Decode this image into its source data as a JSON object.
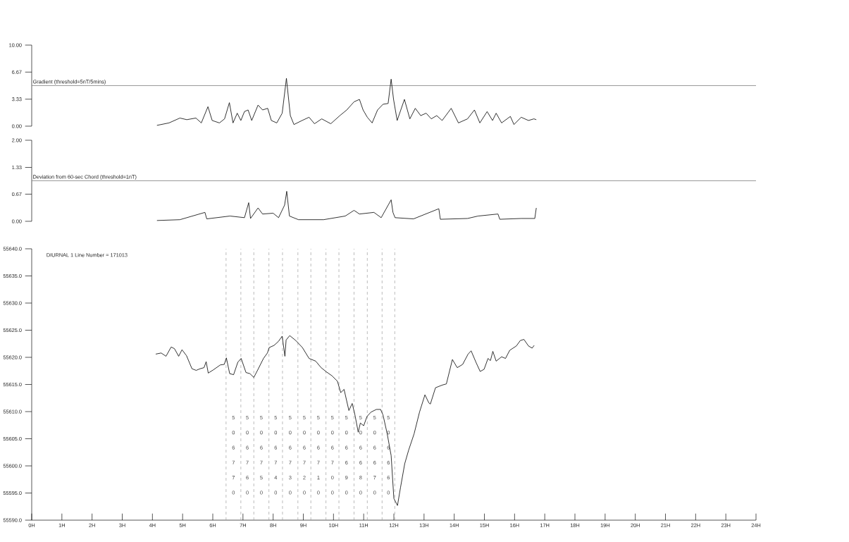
{
  "chart_data": [
    {
      "type": "line",
      "color": "#000000",
      "xlim": [
        0,
        24
      ],
      "ylim": [
        0,
        10
      ],
      "tick_labels": "y",
      "yticks": [
        {
          "value": 0,
          "label": "0.00"
        },
        {
          "value": 3.33,
          "label": "3.33"
        },
        {
          "value": 6.67,
          "label": "6.67"
        },
        {
          "value": 10,
          "label": "10.00"
        }
      ],
      "ref_lines": [
        {
          "axis": "y",
          "value": 5,
          "label": "Gradient (threshold=5nT/5mins)",
          "color": "#808080"
        }
      ],
      "x": [
        4.15,
        4.55,
        4.91,
        5.14,
        5.44,
        5.62,
        5.84,
        5.98,
        6.22,
        6.39,
        6.55,
        6.67,
        6.81,
        6.93,
        7.05,
        7.17,
        7.29,
        7.5,
        7.65,
        7.82,
        7.94,
        8.12,
        8.3,
        8.44,
        8.57,
        8.69,
        8.96,
        9.19,
        9.37,
        9.61,
        9.91,
        10.21,
        10.44,
        10.68,
        10.86,
        10.98,
        11.12,
        11.28,
        11.46,
        11.64,
        11.81,
        11.91,
        11.99,
        12.11,
        12.35,
        12.53,
        12.71,
        12.89,
        13.07,
        13.24,
        13.42,
        13.6,
        13.9,
        14.14,
        14.44,
        14.67,
        14.85,
        15.09,
        15.27,
        15.39,
        15.57,
        15.86,
        15.98,
        16.22,
        16.46,
        16.64,
        16.72
      ],
      "values": [
        0.1,
        0.4,
        1.0,
        0.8,
        1.0,
        0.4,
        2.4,
        0.7,
        0.4,
        0.9,
        2.9,
        0.4,
        1.6,
        0.7,
        1.8,
        2.0,
        0.7,
        2.6,
        2.0,
        2.2,
        0.7,
        0.4,
        1.6,
        5.9,
        1.3,
        0.2,
        0.7,
        1.1,
        0.3,
        0.9,
        0.3,
        1.3,
        2.0,
        3.0,
        3.3,
        2.0,
        1.1,
        0.4,
        2.0,
        2.7,
        2.8,
        5.8,
        3.3,
        0.7,
        3.3,
        0.9,
        2.2,
        1.3,
        1.6,
        0.9,
        1.3,
        0.7,
        2.2,
        0.4,
        0.9,
        2.0,
        0.4,
        1.8,
        0.7,
        1.6,
        0.4,
        1.2,
        0.2,
        1.1,
        0.7,
        0.9,
        0.8
      ]
    },
    {
      "type": "line",
      "color": "#000000",
      "xlim": [
        0,
        24
      ],
      "ylim": [
        0,
        2
      ],
      "tick_labels": "y",
      "yticks": [
        {
          "value": 0,
          "label": "0.00"
        },
        {
          "value": 0.67,
          "label": "0.67"
        },
        {
          "value": 1.33,
          "label": "1.33"
        },
        {
          "value": 2,
          "label": "2.00"
        }
      ],
      "ref_lines": [
        {
          "axis": "y",
          "value": 1,
          "label": "Deviation from 60-sec Chord (threshold=1nT)",
          "color": "#808080"
        }
      ],
      "x": [
        4.15,
        4.91,
        5.74,
        5.8,
        6.57,
        7.05,
        7.19,
        7.25,
        7.5,
        7.65,
        8.0,
        8.18,
        8.38,
        8.45,
        8.54,
        8.84,
        9.67,
        10.39,
        10.68,
        10.86,
        11.34,
        11.58,
        11.91,
        11.97,
        12.04,
        12.65,
        13.49,
        13.54,
        14.44,
        14.79,
        15.45,
        15.51,
        16.22,
        16.67,
        16.72
      ],
      "values": [
        0.02,
        0.04,
        0.22,
        0.06,
        0.13,
        0.09,
        0.46,
        0.07,
        0.33,
        0.18,
        0.2,
        0.09,
        0.4,
        0.74,
        0.13,
        0.04,
        0.04,
        0.13,
        0.27,
        0.18,
        0.22,
        0.09,
        0.53,
        0.22,
        0.09,
        0.06,
        0.31,
        0.05,
        0.07,
        0.13,
        0.18,
        0.05,
        0.07,
        0.07,
        0.33
      ]
    },
    {
      "type": "line",
      "color": "#000000",
      "title": "DIURNAL 1   Line Number = 171013",
      "xlim": [
        0,
        24
      ],
      "ylim": [
        55590,
        55640
      ],
      "yticks": [
        {
          "value": 55590,
          "label": "55590.0"
        },
        {
          "value": 55595,
          "label": "55595.0"
        },
        {
          "value": 55600,
          "label": "55600.0"
        },
        {
          "value": 55605,
          "label": "55605.0"
        },
        {
          "value": 55610,
          "label": "55610.0"
        },
        {
          "value": 55615,
          "label": "55615.0"
        },
        {
          "value": 55620,
          "label": "55620.0"
        },
        {
          "value": 55625,
          "label": "55625.0"
        },
        {
          "value": 55630,
          "label": "55630.0"
        },
        {
          "value": 55635,
          "label": "55635.0"
        },
        {
          "value": 55640,
          "label": "55640.0"
        }
      ],
      "xticks": [
        {
          "value": 0,
          "label": "0H"
        },
        {
          "value": 1,
          "label": "1H"
        },
        {
          "value": 2,
          "label": "2H"
        },
        {
          "value": 3,
          "label": "3H"
        },
        {
          "value": 4,
          "label": "4H"
        },
        {
          "value": 5,
          "label": "5H"
        },
        {
          "value": 6,
          "label": "6H"
        },
        {
          "value": 7,
          "label": "7H"
        },
        {
          "value": 8,
          "label": "8H"
        },
        {
          "value": 9,
          "label": "9H"
        },
        {
          "value": 10,
          "label": "10H"
        },
        {
          "value": 11,
          "label": "11H"
        },
        {
          "value": 12,
          "label": "12H"
        },
        {
          "value": 13,
          "label": "13H"
        },
        {
          "value": 14,
          "label": "14H"
        },
        {
          "value": 15,
          "label": "15H"
        },
        {
          "value": 16,
          "label": "16H"
        },
        {
          "value": 17,
          "label": "17H"
        },
        {
          "value": 18,
          "label": "18H"
        },
        {
          "value": 19,
          "label": "19H"
        },
        {
          "value": 20,
          "label": "20H"
        },
        {
          "value": 21,
          "label": "21H"
        },
        {
          "value": 22,
          "label": "22H"
        },
        {
          "value": 23,
          "label": "23H"
        },
        {
          "value": 24,
          "label": "24H"
        }
      ],
      "ref_lines": [
        {
          "axis": "x",
          "value": 6.44,
          "line_style": "dashed",
          "color": "#999999"
        },
        {
          "axis": "x",
          "value": 6.93,
          "line_style": "dashed",
          "color": "#999999"
        },
        {
          "axis": "x",
          "value": 7.36,
          "line_style": "dashed",
          "color": "#999999"
        },
        {
          "axis": "x",
          "value": 7.86,
          "line_style": "dashed",
          "color": "#999999"
        },
        {
          "axis": "x",
          "value": 8.31,
          "line_style": "dashed",
          "color": "#999999"
        },
        {
          "axis": "x",
          "value": 8.82,
          "line_style": "dashed",
          "color": "#999999"
        },
        {
          "axis": "x",
          "value": 9.25,
          "line_style": "dashed",
          "color": "#999999"
        },
        {
          "axis": "x",
          "value": 9.75,
          "line_style": "dashed",
          "color": "#999999"
        },
        {
          "axis": "x",
          "value": 10.18,
          "line_style": "dashed",
          "color": "#999999"
        },
        {
          "axis": "x",
          "value": 10.68,
          "line_style": "dashed",
          "color": "#999999"
        },
        {
          "axis": "x",
          "value": 11.12,
          "line_style": "dashed",
          "color": "#999999"
        },
        {
          "axis": "x",
          "value": 11.61,
          "line_style": "dashed",
          "color": "#999999"
        },
        {
          "axis": "x",
          "value": 12.03,
          "line_style": "dashed",
          "color": "#999999"
        }
      ],
      "annotations": [
        "5",
        "0",
        "6",
        "7",
        "7",
        "0",
        "5",
        "0",
        "6",
        "7",
        "6",
        "0",
        "5",
        "0",
        "6",
        "7",
        "5",
        "0",
        "5",
        "0",
        "6",
        "7",
        "4",
        "0",
        "5",
        "0",
        "6",
        "7",
        "3",
        "0",
        "5",
        "0",
        "6",
        "7",
        "2",
        "0",
        "5",
        "0",
        "6",
        "7",
        "1",
        "0",
        "5",
        "0",
        "6",
        "7",
        "0",
        "0",
        "5",
        "0",
        "6",
        "6",
        "9",
        "0",
        "5",
        "0",
        "6",
        "6",
        "8",
        "0",
        "5",
        "0",
        "6",
        "6",
        "7",
        "0",
        "5",
        "0",
        "6",
        "6",
        "6",
        "0"
      ],
      "x": [
        4.11,
        4.29,
        4.45,
        4.62,
        4.73,
        4.87,
        4.98,
        5.13,
        5.31,
        5.45,
        5.58,
        5.71,
        5.78,
        5.85,
        6.02,
        6.25,
        6.38,
        6.45,
        6.56,
        6.69,
        6.83,
        6.94,
        7.1,
        7.23,
        7.36,
        7.5,
        7.68,
        7.81,
        7.87,
        8.03,
        8.17,
        8.3,
        8.39,
        8.43,
        8.55,
        8.75,
        8.97,
        9.19,
        9.41,
        9.59,
        9.77,
        9.95,
        10.13,
        10.24,
        10.35,
        10.51,
        10.62,
        10.71,
        10.82,
        10.89,
        11.0,
        11.11,
        11.24,
        11.42,
        11.56,
        11.64,
        11.78,
        11.91,
        12.0,
        12.12,
        12.22,
        12.36,
        12.49,
        12.67,
        12.85,
        13.03,
        13.16,
        13.21,
        13.38,
        13.61,
        13.74,
        13.94,
        14.1,
        14.28,
        14.46,
        14.56,
        14.72,
        14.86,
        14.99,
        15.12,
        15.2,
        15.28,
        15.39,
        15.57,
        15.7,
        15.84,
        16.06,
        16.19,
        16.31,
        16.46,
        16.58,
        16.65
      ],
      "values": [
        55620.6,
        55620.8,
        55620.2,
        55621.9,
        55621.6,
        55620.2,
        55621.4,
        55620.3,
        55617.9,
        55617.6,
        55617.9,
        55618.1,
        55619.2,
        55617.1,
        55617.7,
        55618.6,
        55618.7,
        55619.9,
        55617.0,
        55616.8,
        55619.1,
        55619.8,
        55617.2,
        55617.0,
        55616.3,
        55617.8,
        55619.8,
        55620.8,
        55621.8,
        55622.2,
        55622.9,
        55623.9,
        55620.2,
        55623.2,
        55624.0,
        55623.1,
        55621.8,
        55619.8,
        55619.3,
        55618.1,
        55617.3,
        55616.6,
        55615.6,
        55613.5,
        55614.1,
        55610.2,
        55611.5,
        55609.4,
        55606.2,
        55607.9,
        55607.4,
        55609.1,
        55609.9,
        55610.4,
        55610.4,
        55609.4,
        55605.9,
        55601.9,
        55594.0,
        55592.7,
        55596.0,
        55600.4,
        55602.9,
        55605.9,
        55609.9,
        55613.1,
        55611.6,
        55611.4,
        55614.4,
        55614.9,
        55615.1,
        55619.6,
        55618.1,
        55618.7,
        55620.6,
        55621.2,
        55619.1,
        55617.4,
        55617.8,
        55619.8,
        55619.4,
        55621.1,
        55619.3,
        55620.1,
        55619.8,
        55621.3,
        55622.1,
        55623.1,
        55623.3,
        55622.1,
        55621.7,
        55622.2
      ]
    }
  ]
}
